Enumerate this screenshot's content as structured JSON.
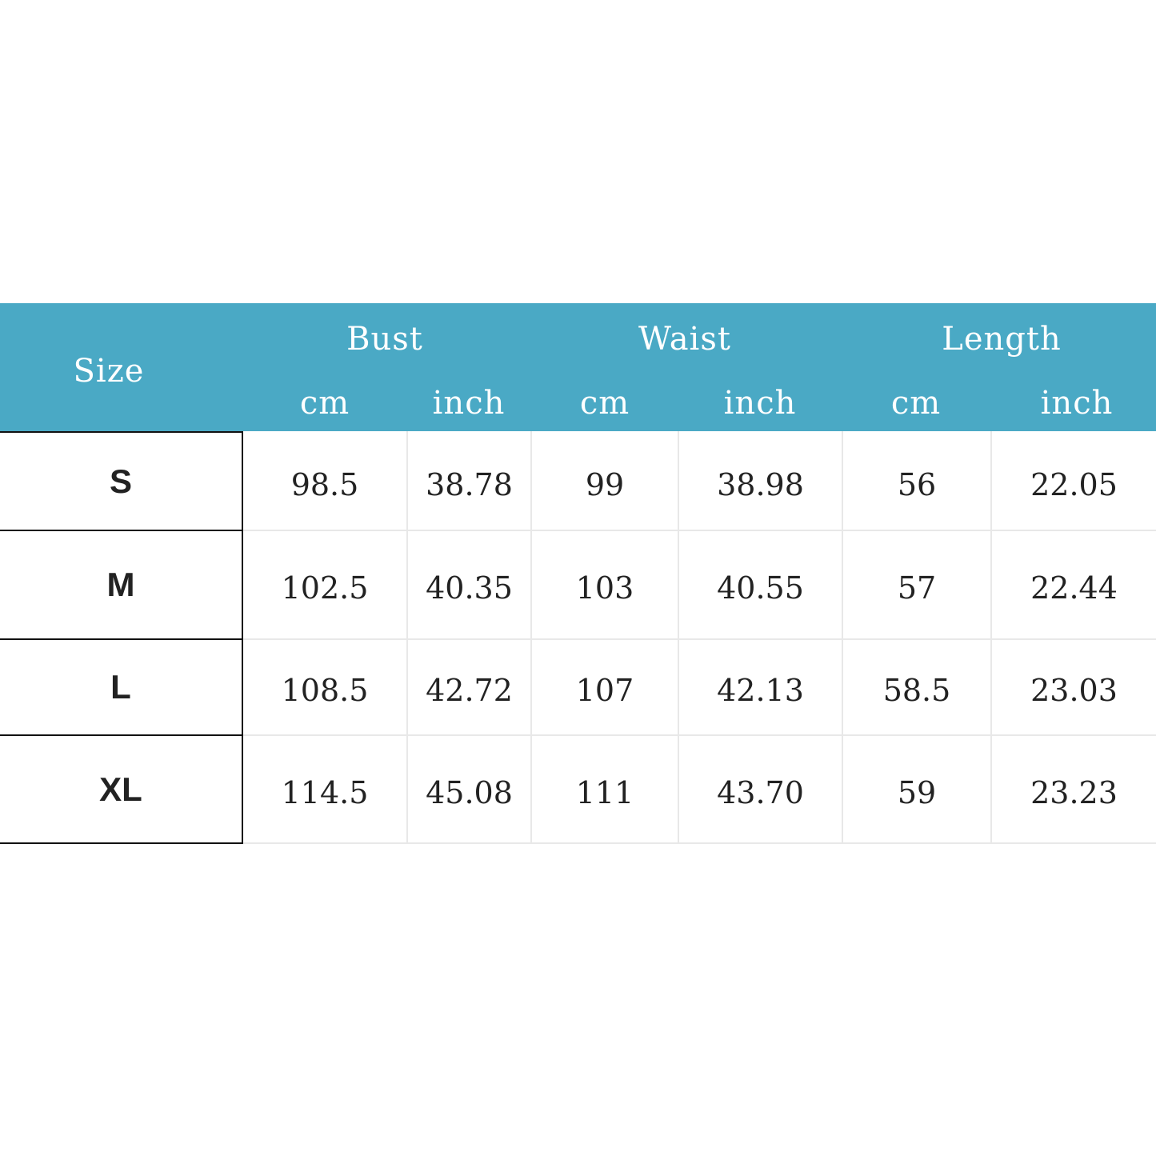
{
  "header": {
    "size_label": "Size",
    "groups": [
      {
        "label": "Bust",
        "units": [
          "cm",
          "inch"
        ]
      },
      {
        "label": "Waist",
        "units": [
          "cm",
          "inch"
        ]
      },
      {
        "label": "Length",
        "units": [
          "cm",
          "inch"
        ]
      }
    ],
    "color": "#4aa9c5"
  },
  "rows": [
    {
      "size": "S",
      "values": [
        "98.5",
        "38.78",
        "99",
        "38.98",
        "56",
        "22.05"
      ]
    },
    {
      "size": "M",
      "values": [
        "102.5",
        "40.35",
        "103",
        "40.55",
        "57",
        "22.44"
      ]
    },
    {
      "size": "L",
      "values": [
        "108.5",
        "42.72",
        "107",
        "42.13",
        "58.5",
        "23.03"
      ]
    },
    {
      "size": "XL",
      "values": [
        "114.5",
        "45.08",
        "111",
        "43.70",
        "59",
        "23.23"
      ]
    }
  ]
}
